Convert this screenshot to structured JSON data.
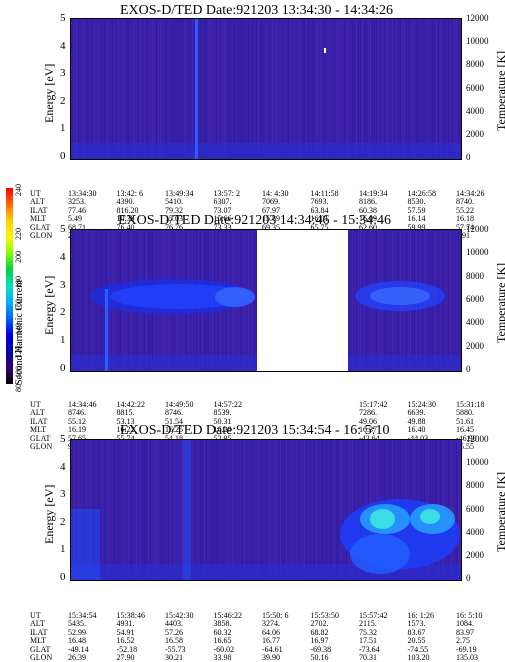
{
  "colorbar": {
    "label": "Second Harmonic Current",
    "ticks": [
      "240",
      "220",
      "200",
      "180",
      "160",
      "140",
      "120",
      "100",
      "80"
    ],
    "colors": [
      "#ff0000",
      "#ff6a00",
      "#ffd000",
      "#fff200",
      "#80ff00",
      "#00d040",
      "#00e0c0",
      "#00b0ff",
      "#0060ff",
      "#0000e0",
      "#0000a0",
      "#3a0070",
      "#000000"
    ]
  },
  "panels": [
    {
      "title": "EXOS-D/TED   Date:921203  13:34:30 - 14:34:26",
      "ylabel": "Energy [eV]",
      "y2label": "Temperature [K]",
      "yticks": [
        "5",
        "4",
        "3",
        "2",
        "1",
        "0"
      ],
      "y2ticks": [
        "12000",
        "10000",
        "8000",
        "6000",
        "4000",
        "2000",
        "0"
      ],
      "rows": {
        "UT": [
          "13:34:30",
          "13:42: 6",
          "13:49:34",
          "13:57: 2",
          "14: 4:30",
          "14:11:58",
          "14:19:34",
          "14:26:58",
          "14:34:26"
        ],
        "ALT": [
          "3253.",
          "4390.",
          "5410.",
          "6307.",
          "7069.",
          "7693.",
          "8186.",
          "8530.",
          "8740."
        ],
        "ILAT": [
          "77.46",
          "816.20",
          "79.32",
          "73.07",
          "67.97",
          "63.84",
          "60.38",
          "57.59",
          "55.22"
        ],
        "MLT": [
          "5.49",
          "10.39",
          "15.03",
          "15.66",
          "15.89",
          "16.01",
          "16.09",
          "16.14",
          "16.18"
        ],
        "GLAT": [
          "68.71",
          "76.40",
          "76.76",
          "73.33",
          "69.35",
          "65.75",
          "62.60",
          "59.99",
          "57.74"
        ],
        "GLON": [
          "256.73",
          "288.62",
          "327.20",
          "349.75",
          "0.24",
          "5.41",
          "8.10",
          "9.39",
          "9.91"
        ]
      }
    },
    {
      "title": "EXOS-D/TED   Date:921203  14:34:46 - 15:34:46",
      "ylabel": "Energy [eV]",
      "y2label": "Temperature [K]",
      "yticks": [
        "5",
        "4",
        "3",
        "2",
        "1",
        "0"
      ],
      "y2ticks": [
        "12000",
        "10000",
        "8000",
        "6000",
        "4000",
        "2000",
        "0"
      ],
      "rows": {
        "UT": [
          "14:34:46",
          "14:42:22",
          "14:49:50",
          "14:57:22",
          "",
          "",
          "15:17:42",
          "15:24:30",
          "15:31:18"
        ],
        "ALT": [
          "8746.",
          "8815.",
          "8746.",
          "8539.",
          "",
          "",
          "7286.",
          "6639.",
          "5880."
        ],
        "ILAT": [
          "55.12",
          "53.13",
          "51.54",
          "50.31",
          "",
          "",
          "49.06",
          "49.88",
          "51.61"
        ],
        "MLT": [
          "16.19",
          "16.22",
          "16.25",
          "16.28",
          "",
          "",
          "16.37",
          "16.40",
          "16.45"
        ],
        "GLAT": [
          "57.65",
          "55.74",
          "54.18",
          "52.95",
          "",
          "",
          "-42.64",
          "-44.03",
          "-46.90"
        ],
        "GLON": [
          "9.92",
          "9.91",
          "9.55",
          "8.91",
          "",
          "",
          "25.19",
          "24.93",
          "25.55"
        ]
      }
    },
    {
      "title": "EXOS-D/TED   Date:921203  15:34:54 - 16: 5:10",
      "ylabel": "Energy [eV]",
      "y2label": "Temperature [K]",
      "yticks": [
        "5",
        "4",
        "3",
        "2",
        "1",
        "0"
      ],
      "y2ticks": [
        "12000",
        "10000",
        "8000",
        "6000",
        "4000",
        "2000",
        "0"
      ],
      "rows": {
        "UT": [
          "15:34:54",
          "15:38:46",
          "15:42:30",
          "15:46:22",
          "15:50: 6",
          "15:53:50",
          "15:57:42",
          "16: 1:26",
          "16: 5:10"
        ],
        "ALT": [
          "5435.",
          "4931.",
          "4403.",
          "3858.",
          "3274.",
          "2702.",
          "2115.",
          "1573.",
          "1084."
        ],
        "ILAT": [
          "52.99",
          "54.91",
          "57.26",
          "60.32",
          "64.06",
          "68.82",
          "75.32",
          "83.67",
          "83.97"
        ],
        "MLT": [
          "16.48",
          "16.52",
          "16.58",
          "16.65",
          "16.77",
          "16.97",
          "17.51",
          "20.55",
          "2.75"
        ],
        "GLAT": [
          "-49.14",
          "-52.18",
          "-55.73",
          "-60.02",
          "-64.61",
          "-69.38",
          "-73.64",
          "-74.55",
          "-69.19"
        ],
        "GLON": [
          "26.39",
          "27.90",
          "30.21",
          "33.98",
          "39.90",
          "50.16",
          "70.31",
          "103.20",
          "135.03"
        ]
      }
    }
  ]
}
